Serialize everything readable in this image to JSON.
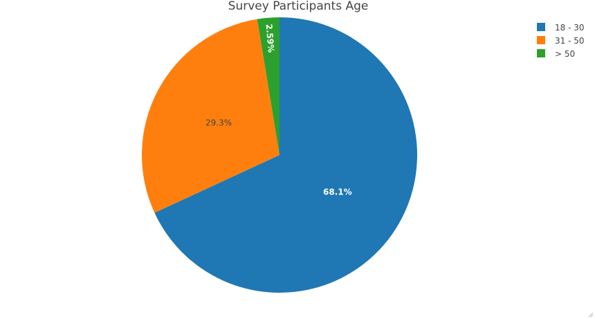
{
  "chart_data": {
    "type": "pie",
    "title": "Survey Participants Age",
    "categories": [
      "18 - 30",
      "31 - 50",
      "> 50"
    ],
    "values": [
      68.1,
      29.3,
      2.59
    ],
    "labels": [
      "68.1%",
      "29.3%",
      "2.59%"
    ],
    "colors": [
      "#1f77b4",
      "#ff7f0e",
      "#2ca02c"
    ],
    "label_colors": [
      "#ffffff",
      "#444444",
      "#ffffff"
    ],
    "direction": "clockwise",
    "start_angle_deg": 0,
    "legend": "top-right"
  }
}
